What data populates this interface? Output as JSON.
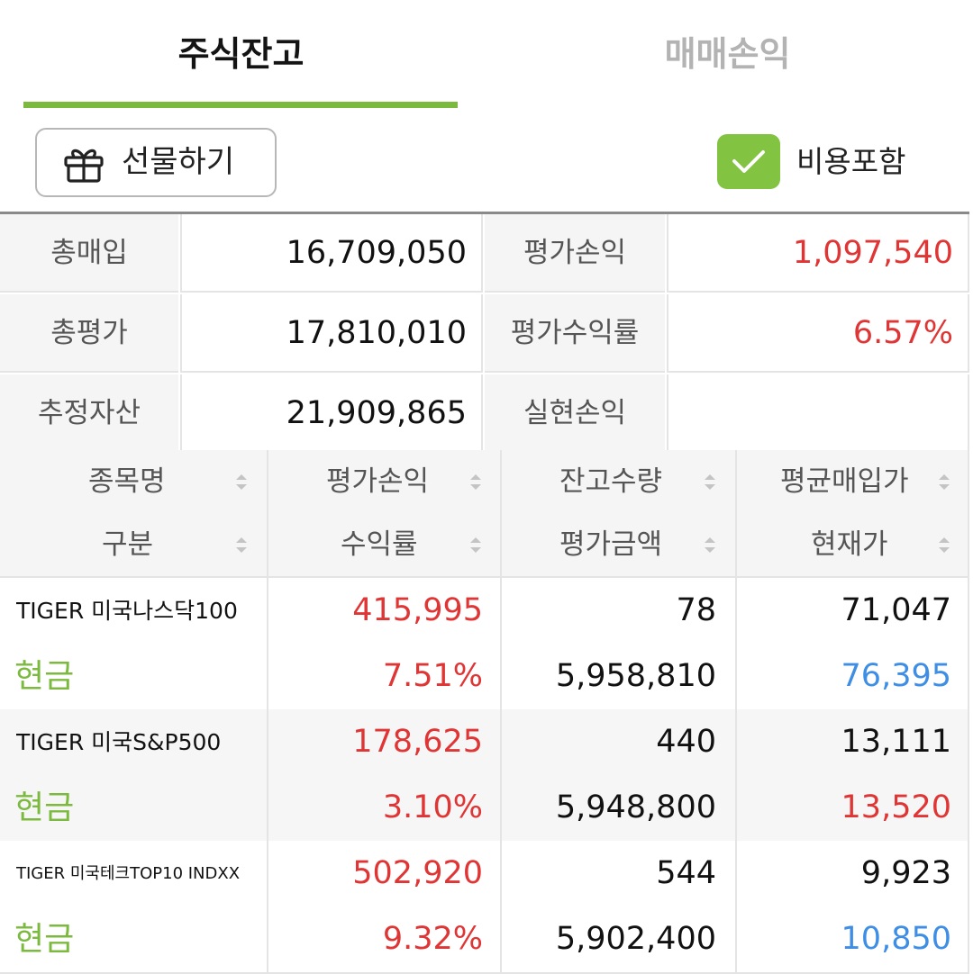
{
  "tabs": [
    {
      "label": "주식잔고",
      "active": true
    },
    {
      "label": "매매손익",
      "active": false
    }
  ],
  "toolbar": {
    "gift_label": "선물하기",
    "gift_icon": "gift-icon",
    "include_fee_label": "비용포함",
    "include_fee_checked": true
  },
  "summary": {
    "total_purchase_label": "총매입",
    "total_purchase": "16,709,050",
    "eval_pl_label": "평가손익",
    "eval_pl": "1,097,540",
    "total_eval_label": "총평가",
    "total_eval": "17,810,010",
    "eval_rate_label": "평가수익률",
    "eval_rate": "6.57%",
    "est_assets_label": "추정자산",
    "est_assets": "21,909,865",
    "realized_pl_label": "실현손익",
    "realized_pl": ""
  },
  "table": {
    "headers": {
      "name": "종목명",
      "type": "구분",
      "eval_pl": "평가손익",
      "rate": "수익률",
      "qty": "잔고수량",
      "eval_amount": "평가금액",
      "avg_price": "평균매입가",
      "current_price": "현재가"
    },
    "rows": [
      {
        "name": "TIGER 미국나스닥100",
        "type": "현금",
        "eval_pl": "415,995",
        "rate": "7.51%",
        "qty": "78",
        "eval_amount": "5,958,810",
        "avg_price": "71,047",
        "current_price": "76,395"
      },
      {
        "name": "TIGER 미국S&P500",
        "type": "현금",
        "eval_pl": "178,625",
        "rate": "3.10%",
        "qty": "440",
        "eval_amount": "5,948,800",
        "avg_price": "13,111",
        "current_price": "13,520"
      },
      {
        "name": "TIGER 미국테크TOP10 INDXX",
        "type": "현금",
        "eval_pl": "502,920",
        "rate": "9.32%",
        "qty": "544",
        "eval_amount": "5,902,400",
        "avg_price": "9,923",
        "current_price": "10,850"
      }
    ]
  },
  "colors": {
    "accent_green": "#7cba3f",
    "checkbox_green": "#82c341",
    "profit_red": "#e03535",
    "price_down_blue": "#3f8ee6"
  }
}
